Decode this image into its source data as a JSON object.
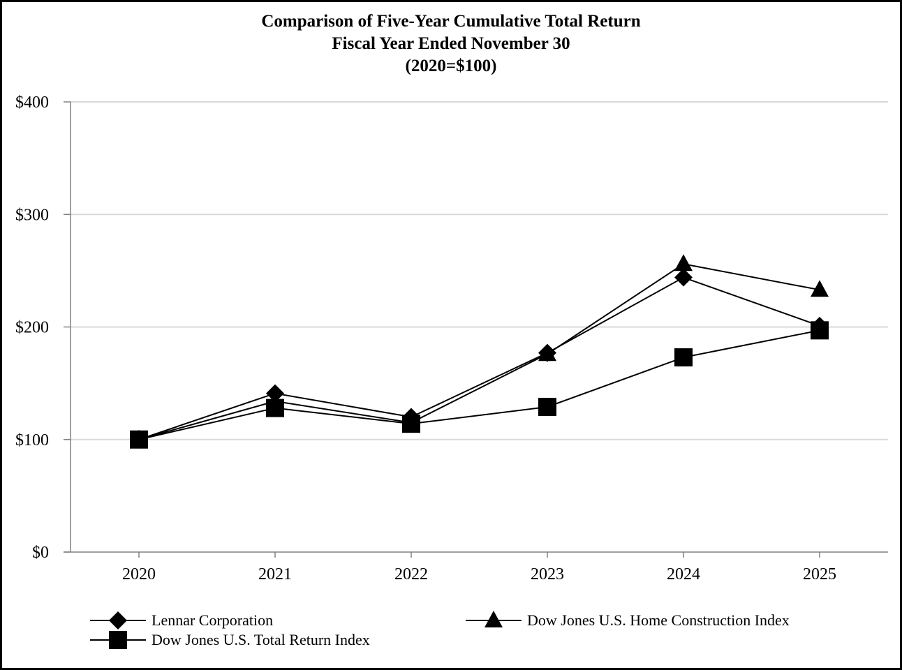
{
  "chart_data": {
    "type": "line",
    "title": "Comparison of Five-Year Cumulative Total Return",
    "subtitle_lines": [
      "Fiscal Year Ended November 30",
      "(2020=$100)"
    ],
    "xlabel": "",
    "ylabel": "",
    "categories": [
      "2020",
      "2021",
      "2022",
      "2023",
      "2024",
      "2025"
    ],
    "ylim": [
      0,
      400
    ],
    "y_ticks": [
      {
        "value": 0,
        "label": "$0"
      },
      {
        "value": 100,
        "label": "$100"
      },
      {
        "value": 200,
        "label": "$200"
      },
      {
        "value": 300,
        "label": "$300"
      },
      {
        "value": 400,
        "label": "$400"
      }
    ],
    "grid": true,
    "legend_position": "bottom",
    "series": [
      {
        "name": "Lennar Corporation",
        "marker": "diamond",
        "values": [
          100,
          141,
          120,
          177,
          244,
          201
        ]
      },
      {
        "name": "Dow Jones U.S. Home Construction Index",
        "marker": "triangle",
        "values": [
          100,
          134,
          115,
          176,
          256,
          233
        ]
      },
      {
        "name": "Dow Jones U.S. Total Return Index",
        "marker": "square",
        "values": [
          100,
          128,
          114,
          129,
          173,
          197
        ]
      }
    ],
    "colors": {
      "line": "#000000",
      "grid": "#d9d9d9",
      "axis": "#808080"
    }
  }
}
